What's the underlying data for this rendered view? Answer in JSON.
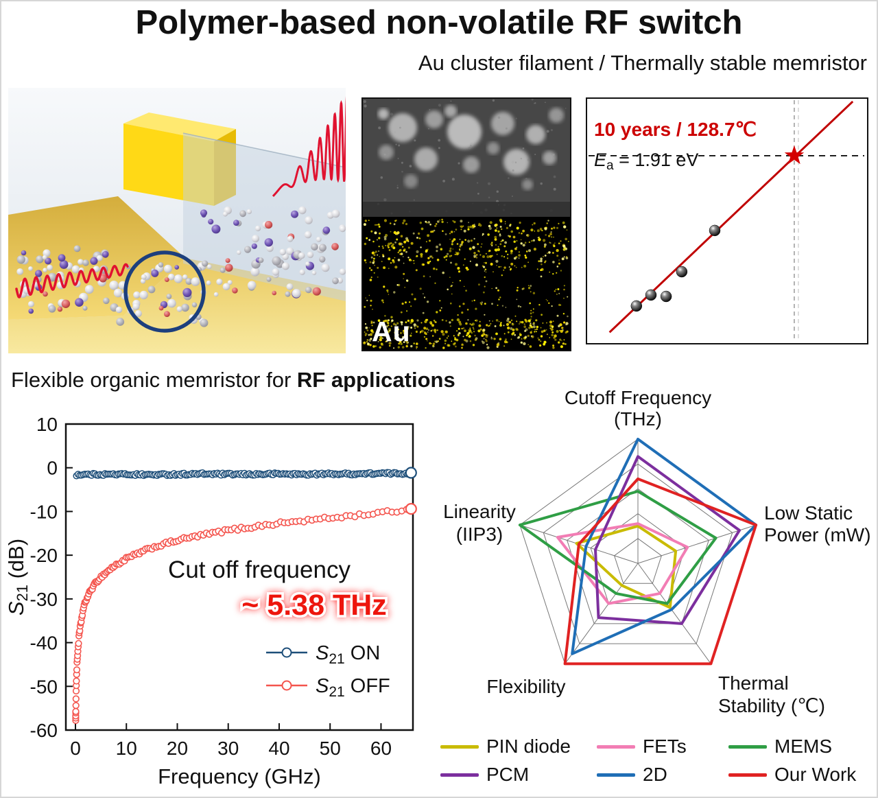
{
  "header": {
    "title": "Polymer-based non-volatile RF switch",
    "subtitle": "Au cluster filament / Thermally stable memristor"
  },
  "section2": {
    "prefix": "Flexible organic memristor for ",
    "bold": "RF applications"
  },
  "tem_panel": {
    "label": "Au"
  },
  "arrhenius": {
    "annotation_temp": "10 years / 128.7℃",
    "ea": {
      "pre": "E",
      "sub": "a",
      "post": " = 1.91 eV"
    },
    "line_color": "#c00000",
    "line": {
      "x1": 0.08,
      "y1": 0.956,
      "x2": 0.949,
      "y2": 0.011
    },
    "points": [
      [
        0.176,
        0.848
      ],
      [
        0.228,
        0.803
      ],
      [
        0.282,
        0.809
      ],
      [
        0.338,
        0.708
      ],
      [
        0.456,
        0.539
      ]
    ],
    "star": [
      0.74,
      0.233
    ]
  },
  "chart_data": [
    {
      "id": "s21_vs_frequency",
      "type": "scatter",
      "xlabel": "Frequency (GHz)",
      "ylabel": {
        "pre": "S",
        "sub": "21",
        "post": " (dB)"
      },
      "xlim": [
        0,
        67
      ],
      "ylim": [
        -60,
        10
      ],
      "xticks": [
        0,
        10,
        20,
        30,
        40,
        50,
        60
      ],
      "yticks": [
        10,
        0,
        -10,
        -20,
        -30,
        -40,
        -50,
        -60
      ],
      "annotation": {
        "line1": "Cut off frequency",
        "line2": "~ 5.38 THz",
        "line2_color": "#ed1310"
      },
      "series": [
        {
          "name": {
            "pre": "S",
            "sub": "21",
            "post": " ON"
          },
          "color": "#1d4e79",
          "x": [
            0.1,
            5,
            10,
            15,
            20,
            25,
            30,
            35,
            40,
            45,
            50,
            55,
            60,
            66
          ],
          "y": [
            -1.6,
            -1.5,
            -1.5,
            -1.6,
            -1.5,
            -1.4,
            -1.5,
            -1.5,
            -1.4,
            -1.5,
            -1.4,
            -1.4,
            -1.3,
            -1.3
          ]
        },
        {
          "name": {
            "pre": "S",
            "sub": "21",
            "post": " OFF"
          },
          "color": "#f4544d",
          "x": [
            0.05,
            0.1,
            0.15,
            0.2,
            0.3,
            0.4,
            0.5,
            0.7,
            1,
            1.5,
            2,
            3,
            4,
            5,
            7,
            10,
            15,
            20,
            25,
            30,
            35,
            40,
            45,
            50,
            55,
            60,
            66
          ],
          "y": [
            -57.5,
            -53,
            -50,
            -48,
            -45,
            -43,
            -41.5,
            -38.5,
            -36,
            -32.5,
            -30.5,
            -28,
            -26.3,
            -25,
            -23,
            -20.8,
            -18.3,
            -16.6,
            -15.4,
            -14.3,
            -13.5,
            -12.7,
            -12.1,
            -11.5,
            -10.9,
            -10.3,
            -9.5
          ]
        }
      ]
    },
    {
      "id": "rf_switch_benchmark",
      "type": "radar",
      "max": 5,
      "grid_levels": 5,
      "axes": [
        [
          "Cutoff Frequency",
          "(THz)"
        ],
        [
          "Low Static",
          "Power (mW)"
        ],
        [
          "Thermal",
          "Stability (℃)"
        ],
        [
          "Flexibility"
        ],
        [
          "Linearity",
          "(IIP3)"
        ]
      ],
      "series": [
        {
          "name": "PIN diode",
          "color": "#c9bb00",
          "values": [
            1.5,
            1.6,
            2.2,
            1.1,
            2.6
          ]
        },
        {
          "name": "FETs",
          "color": "#f27db4",
          "values": [
            1.6,
            2.1,
            1.5,
            2.0,
            3.4
          ]
        },
        {
          "name": "MEMS",
          "color": "#2f9e45",
          "values": [
            2.9,
            3.3,
            2.0,
            1.5,
            5.0
          ]
        },
        {
          "name": "PCM",
          "color": "#7c2f9e",
          "values": [
            4.3,
            4.3,
            3.0,
            2.7,
            1.8
          ]
        },
        {
          "name": "2D",
          "color": "#1f6eb6",
          "values": [
            5.0,
            5.0,
            2.3,
            4.5,
            2.2
          ]
        },
        {
          "name": "Our Work",
          "color": "#e02222",
          "values": [
            3.4,
            5.0,
            5.0,
            5.0,
            2.5
          ]
        }
      ]
    }
  ]
}
